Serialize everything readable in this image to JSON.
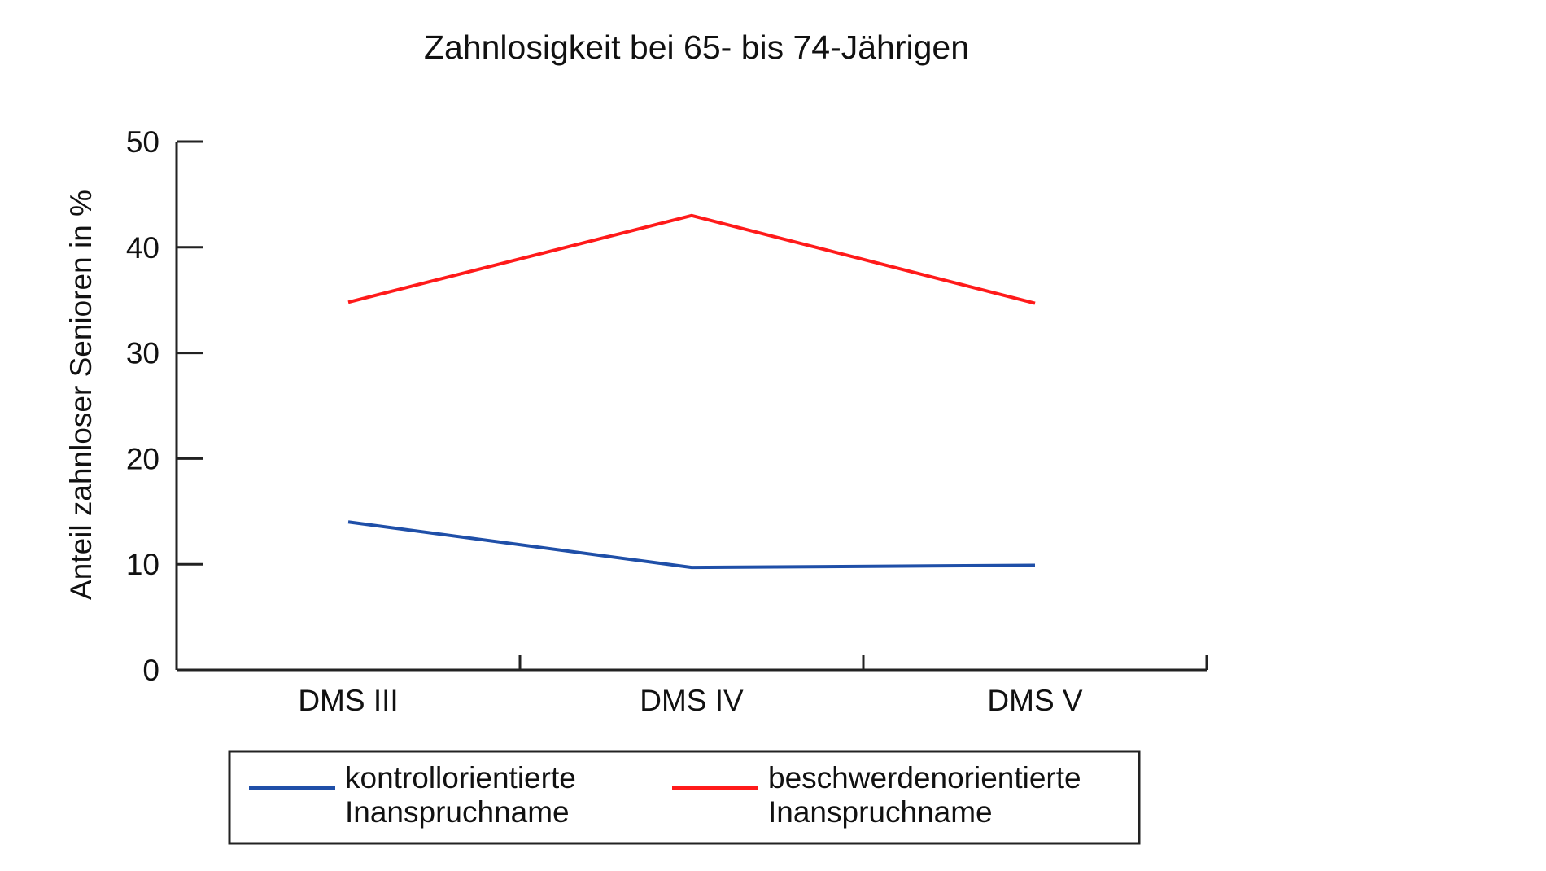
{
  "chart_data": {
    "type": "line",
    "title": "Zahnlosigkeit bei 65- bis 74-Jährigen",
    "xlabel": "",
    "ylabel": "Anteil zahnloser Senioren in %",
    "categories": [
      "DMS III",
      "DMS IV",
      "DMS V"
    ],
    "ylim": [
      0,
      50
    ],
    "yticks": [
      0,
      10,
      20,
      30,
      40,
      50
    ],
    "grid": false,
    "legend_position": "bottom",
    "series": [
      {
        "name_lines": [
          "kontrollorientierte",
          "Inanspruchname"
        ],
        "color": "#1f4fa8",
        "values": [
          14.0,
          9.7,
          9.9
        ]
      },
      {
        "name_lines": [
          "beschwerdenorientierte",
          "Inanspruchname"
        ],
        "color": "#ff1a1a",
        "values": [
          34.8,
          43.0,
          34.7
        ]
      }
    ]
  }
}
